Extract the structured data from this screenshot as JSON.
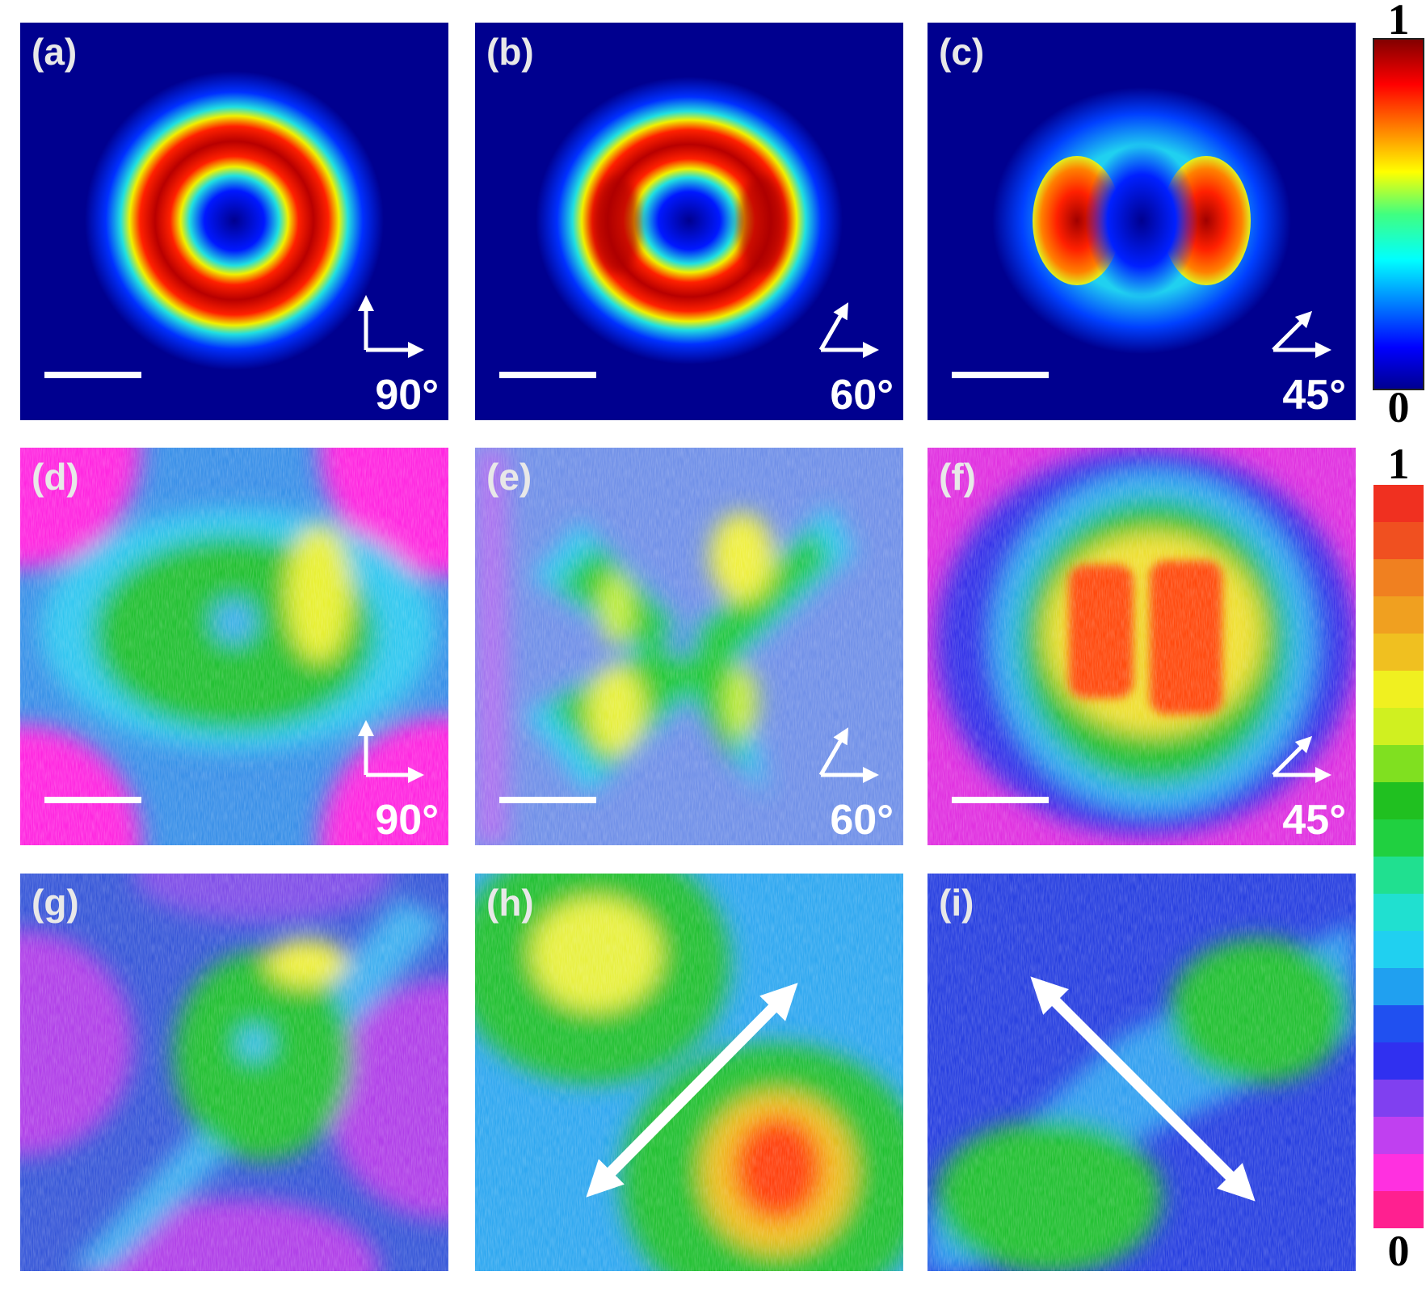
{
  "panels": [
    {
      "label": "(a)",
      "angle": "90°"
    },
    {
      "label": "(b)",
      "angle": "60°"
    },
    {
      "label": "(c)",
      "angle": "45°"
    },
    {
      "label": "(d)",
      "angle": "90°"
    },
    {
      "label": "(e)",
      "angle": "60°"
    },
    {
      "label": "(f)",
      "angle": "45°"
    },
    {
      "label": "(g)"
    },
    {
      "label": "(h)"
    },
    {
      "label": "(i)"
    }
  ],
  "colorbars": [
    {
      "top": 1,
      "bottom": 0
    },
    {
      "top": 1,
      "bottom": 0
    }
  ]
}
